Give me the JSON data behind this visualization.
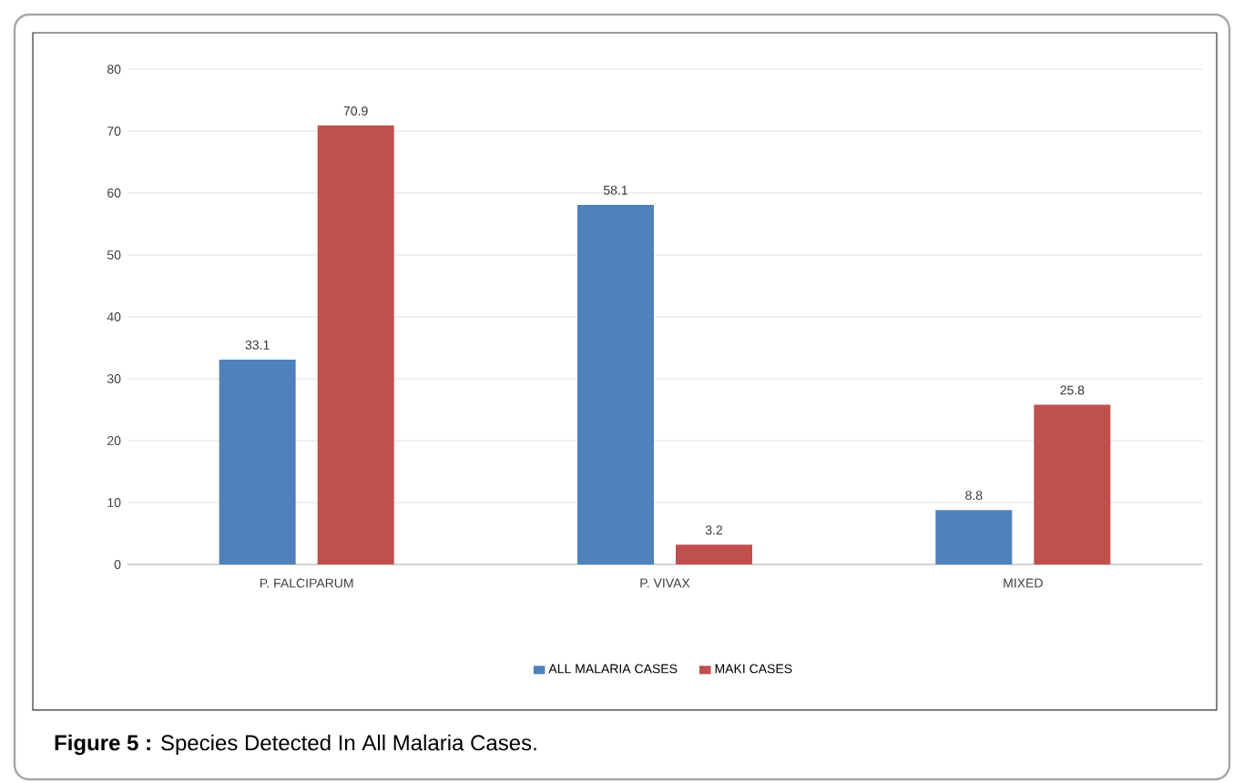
{
  "chart_data": {
    "type": "bar",
    "categories": [
      "P. FALCIPARUM",
      "P. VIVAX",
      "MIXED"
    ],
    "series": [
      {
        "name": "ALL MALARIA CASES",
        "color": "#4f81bd",
        "values": [
          33.1,
          58.1,
          8.8
        ]
      },
      {
        "name": "MAKI CASES",
        "color": "#c0504d",
        "values": [
          70.9,
          3.2,
          25.8
        ]
      }
    ],
    "ylim": [
      0,
      80
    ],
    "yticks": [
      0,
      10,
      20,
      30,
      40,
      50,
      60,
      70,
      80
    ],
    "grid": "y",
    "legend": "bottom",
    "data_labels": true,
    "annotations": [
      "**Figure 5 :** Species Detected In All Malaria Cases."
    ]
  }
}
